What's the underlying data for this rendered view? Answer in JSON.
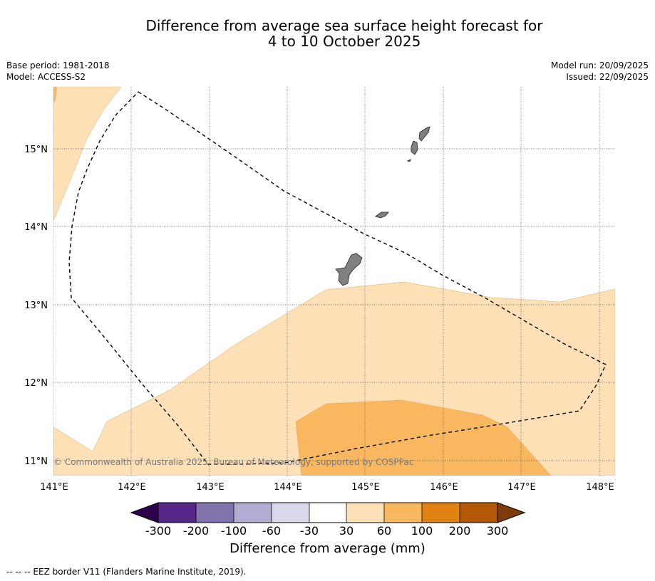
{
  "title": {
    "line1": "Difference from average sea surface height forecast for",
    "line2": "4 to 10 October 2025"
  },
  "meta": {
    "base_period": "Base period: 1981-2018",
    "model": "Model: ACCESS-S2",
    "model_run": "Model run: 20/09/2025",
    "issued": "Issued: 22/09/2025"
  },
  "axes": {
    "lon_labels": [
      "141°E",
      "142°E",
      "143°E",
      "144°E",
      "145°E",
      "146°E",
      "147°E",
      "148°E"
    ],
    "lat_labels": [
      "15°N",
      "14°N",
      "13°N",
      "12°N",
      "11°N"
    ]
  },
  "copyright": "© Commonwealth of Australia 2025, Bureau of Meteorology, supported by COSPPac",
  "colorbar": {
    "title": "Difference from average (mm)",
    "ticks": [
      "-300",
      "-200",
      "-100",
      "-60",
      "-30",
      "30",
      "60",
      "100",
      "200",
      "300"
    ],
    "colors": {
      "below": "#2d004b",
      "c1": "#542788",
      "c2": "#8073ac",
      "c3": "#b2abd2",
      "c4": "#d8daeb",
      "c5": "#ffffff",
      "c6": "#fde0b6",
      "c7": "#f9b760",
      "c8": "#e08214",
      "c9": "#b35806",
      "above": "#7f3b08"
    }
  },
  "footnote": "--  --  -- EEZ border V11 (Flanders Marine Institute, 2019).",
  "colors": {
    "land": "#808080",
    "fill_30_60": "#fde0b6",
    "fill_60_100": "#f9b760",
    "edge_orange": "#e08214"
  }
}
